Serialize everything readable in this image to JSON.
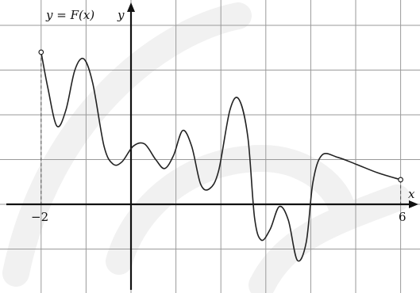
{
  "chart_data": {
    "type": "line",
    "function_label": "y = F(x)",
    "xlabel": "x",
    "ylabel": "y",
    "tick_labels": {
      "left": "−2",
      "right": "6"
    },
    "xlim": [
      -3,
      6
    ],
    "ylim": [
      -1.9,
      4.1
    ],
    "grid": true,
    "endpoints": {
      "left": [
        -2,
        3.4
      ],
      "right": [
        6,
        0.55
      ]
    },
    "series": [
      {
        "points": [
          [
            -2.0,
            3.4
          ],
          [
            -1.85,
            2.6
          ],
          [
            -1.65,
            1.75
          ],
          [
            -1.45,
            2.1
          ],
          [
            -1.25,
            3.0
          ],
          [
            -1.05,
            3.25
          ],
          [
            -0.85,
            2.7
          ],
          [
            -0.6,
            1.3
          ],
          [
            -0.4,
            0.9
          ],
          [
            -0.2,
            0.95
          ],
          [
            0.05,
            1.3
          ],
          [
            0.3,
            1.35
          ],
          [
            0.55,
            1.0
          ],
          [
            0.75,
            0.8
          ],
          [
            0.95,
            1.1
          ],
          [
            1.15,
            1.65
          ],
          [
            1.35,
            1.3
          ],
          [
            1.55,
            0.45
          ],
          [
            1.75,
            0.35
          ],
          [
            1.95,
            0.75
          ],
          [
            2.2,
            2.1
          ],
          [
            2.4,
            2.35
          ],
          [
            2.6,
            1.5
          ],
          [
            2.75,
            -0.3
          ],
          [
            2.9,
            -0.8
          ],
          [
            3.1,
            -0.55
          ],
          [
            3.3,
            -0.05
          ],
          [
            3.5,
            -0.35
          ],
          [
            3.7,
            -1.25
          ],
          [
            3.9,
            -0.85
          ],
          [
            4.05,
            0.5
          ],
          [
            4.25,
            1.1
          ],
          [
            4.6,
            1.05
          ],
          [
            5.0,
            0.9
          ],
          [
            5.5,
            0.7
          ],
          [
            6.0,
            0.55
          ]
        ]
      }
    ]
  }
}
